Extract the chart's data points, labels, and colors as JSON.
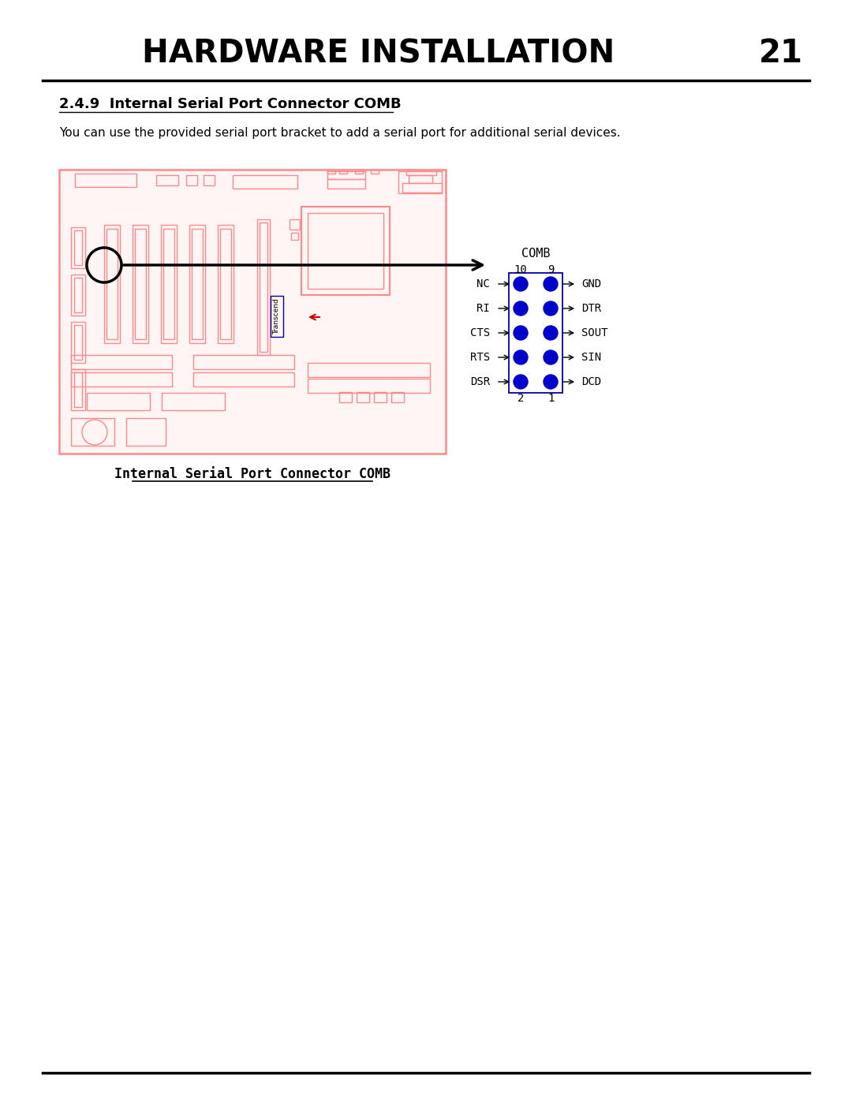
{
  "title": "HARDWARE INSTALLATION",
  "page_num": "21",
  "section": "2.4.9  Internal Serial Port Connector COMB",
  "body_text": "You can use the provided serial port bracket to add a serial port for additional serial devices.",
  "caption": "Internal Serial Port Connector COMB",
  "bg_color": "#ffffff",
  "board_color": "#ff8888",
  "board_bg": "#fff5f5",
  "dot_color": "#0000cc",
  "connector_border": "#0000aa",
  "red_arrow_color": "#cc0000",
  "comb_label": "COMB",
  "pin_cols": [
    "10",
    "9"
  ],
  "pin_rows_left": [
    "NC",
    "RI",
    "CTS",
    "RTS",
    "DSR"
  ],
  "pin_rows_right": [
    "GND",
    "DTR",
    "SOUT",
    "SIN",
    "DCD"
  ],
  "bottom_labels": [
    "2",
    "1"
  ],
  "transcend_label": "Transcend"
}
